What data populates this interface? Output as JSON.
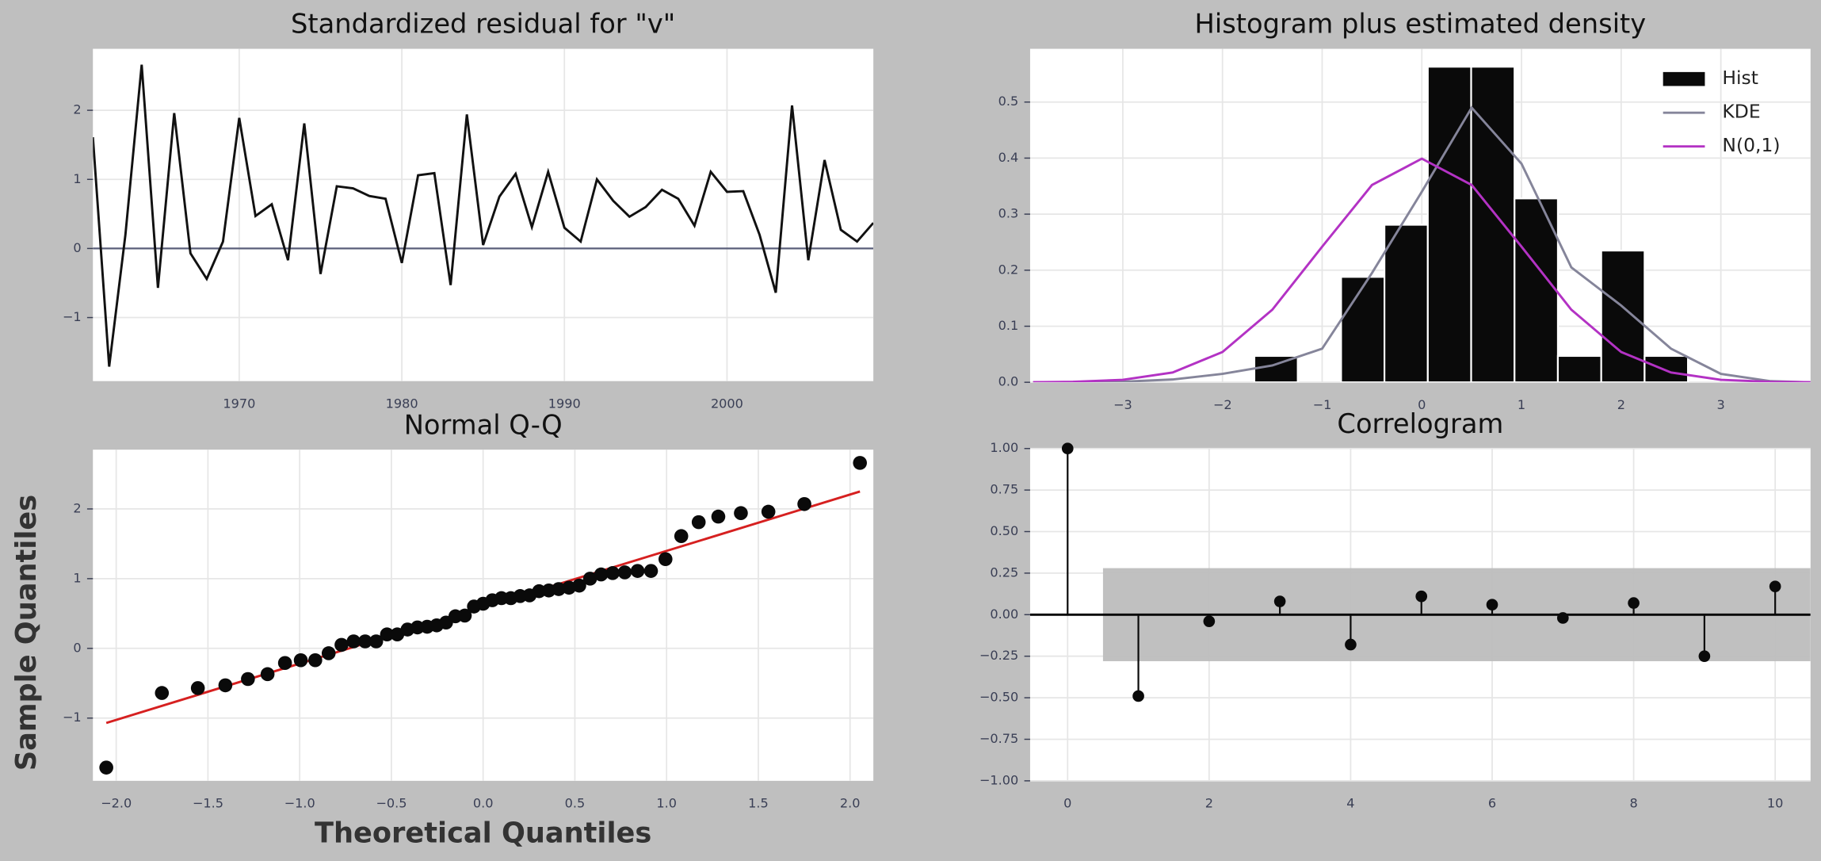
{
  "chart_data": [
    {
      "type": "line",
      "title": "Standardized residual for \"v\"",
      "x": [
        1961,
        1962,
        1963,
        1964,
        1965,
        1966,
        1967,
        1968,
        1969,
        1970,
        1971,
        1972,
        1973,
        1974,
        1975,
        1976,
        1977,
        1978,
        1979,
        1980,
        1981,
        1982,
        1983,
        1984,
        1985,
        1986,
        1987,
        1988,
        1989,
        1990,
        1991,
        1992,
        1993,
        1994,
        1995,
        1996,
        1997,
        1998,
        1999,
        2000,
        2001,
        2002,
        2003,
        2004,
        2005,
        2006,
        2007,
        2008,
        2009
      ],
      "series": [
        {
          "color": "#111111",
          "values": [
            1.61,
            -1.71,
            0.2,
            2.66,
            -0.57,
            1.96,
            -0.07,
            -0.44,
            0.1,
            1.89,
            0.47,
            0.64,
            -0.17,
            1.81,
            -0.37,
            0.9,
            0.87,
            0.76,
            0.72,
            -0.21,
            1.06,
            1.09,
            -0.53,
            1.94,
            0.05,
            0.75,
            1.08,
            0.31,
            1.11,
            0.3,
            0.1,
            1.0,
            0.69,
            0.46,
            0.6,
            0.85,
            0.72,
            0.33,
            1.11,
            0.82,
            0.83,
            0.2,
            -0.64,
            2.07,
            -0.17,
            1.28,
            0.27,
            0.1,
            0.37
          ]
        }
      ],
      "reference_line": 0,
      "reference_color": "#5a5f7a",
      "xlim": [
        1961,
        2009
      ],
      "xticks": [
        1970,
        1980,
        1990,
        2000
      ],
      "ylim": [
        -1.92,
        2.89
      ],
      "yticks": [
        {
          "value": -1,
          "label": "−1"
        },
        0,
        1,
        2
      ],
      "grid": true
    },
    {
      "type": "histogram",
      "title": "Histogram plus estimated density",
      "hist": {
        "name": "Hist",
        "color": "#0a0a0a",
        "bins": [
          -1.68,
          -1.245,
          -0.81,
          -0.375,
          0.06,
          0.495,
          0.93,
          1.365,
          1.8,
          2.235,
          2.67
        ],
        "values": [
          0.047,
          0,
          0.188,
          0.281,
          0.563,
          0.563,
          0.328,
          0.047,
          0.235,
          0.047
        ]
      },
      "curves": {
        "x": [
          -3.9,
          -3.5,
          -3,
          -2.5,
          -2,
          -1.5,
          -1,
          -0.5,
          0,
          0.5,
          1,
          1.5,
          2,
          2.5,
          3,
          3.5,
          3.9
        ],
        "series": [
          {
            "name": "KDE",
            "color": "#85859a",
            "values": [
              0,
              0.0005,
              0.001,
              0.005,
              0.015,
              0.03,
              0.06,
              0.195,
              0.34,
              0.49,
              0.39,
              0.205,
              0.137,
              0.06,
              0.015,
              0.002,
              0
            ]
          },
          {
            "name": "N(0,1)",
            "color": "#b332c4",
            "values": [
              0.0002,
              0.0009,
              0.0044,
              0.0175,
              0.054,
              0.1295,
              0.242,
              0.352,
              0.399,
              0.352,
              0.242,
              0.1295,
              0.054,
              0.0175,
              0.0044,
              0.0009,
              0.0002
            ]
          }
        ]
      },
      "legend": "upper right",
      "xlim": [
        -3.93,
        3.9
      ],
      "xticks": [
        {
          "value": -3,
          "label": "−3"
        },
        {
          "value": -2,
          "label": "−2"
        },
        {
          "value": -1,
          "label": "−1"
        },
        0,
        1,
        2,
        3
      ],
      "ylim": [
        0,
        0.595
      ],
      "yticks": [
        {
          "value": 0,
          "label": "0.0"
        },
        0.1,
        0.2,
        0.3,
        0.4,
        0.5
      ],
      "grid": true
    },
    {
      "type": "scatter",
      "title": "Normal Q-Q",
      "x_label": "Theoretical Quantiles",
      "y_label": "Sample Quantiles",
      "x": [
        -2.054,
        -1.751,
        -1.555,
        -1.405,
        -1.282,
        -1.175,
        -1.08,
        -0.994,
        -0.915,
        -0.842,
        -0.772,
        -0.706,
        -0.643,
        -0.583,
        -0.524,
        -0.468,
        -0.412,
        -0.358,
        -0.305,
        -0.253,
        -0.202,
        -0.151,
        -0.1,
        -0.05,
        0,
        0.05,
        0.1,
        0.151,
        0.202,
        0.253,
        0.305,
        0.358,
        0.412,
        0.468,
        0.524,
        0.583,
        0.643,
        0.706,
        0.772,
        0.842,
        0.915,
        0.994,
        1.08,
        1.175,
        1.282,
        1.405,
        1.555,
        1.751,
        2.054
      ],
      "values": [
        -1.71,
        -0.64,
        -0.57,
        -0.53,
        -0.44,
        -0.37,
        -0.21,
        -0.17,
        -0.17,
        -0.07,
        0.05,
        0.1,
        0.1,
        0.1,
        0.2,
        0.2,
        0.27,
        0.3,
        0.31,
        0.33,
        0.37,
        0.46,
        0.47,
        0.6,
        0.64,
        0.69,
        0.72,
        0.72,
        0.75,
        0.76,
        0.82,
        0.83,
        0.85,
        0.87,
        0.9,
        1.0,
        1.06,
        1.08,
        1.09,
        1.11,
        1.11,
        1.28,
        1.61,
        1.81,
        1.89,
        1.94,
        1.96,
        2.07,
        2.66
      ],
      "color": "#0a0a0a",
      "fit_line": {
        "x": [
          -2.054,
          2.054
        ],
        "values": [
          -1.07,
          2.25
        ],
        "color": "#d62020"
      },
      "xlim": [
        -2.127,
        2.127
      ],
      "xticks": [
        {
          "value": -2,
          "label": "−2.0"
        },
        {
          "value": -1.5,
          "label": "−1.5"
        },
        {
          "value": -1,
          "label": "−1.0"
        },
        {
          "value": -0.5,
          "label": "−0.5"
        },
        {
          "value": 0,
          "label": "0.0"
        },
        0.5,
        {
          "value": 1,
          "label": "1.0"
        },
        1.5,
        {
          "value": 2,
          "label": "2.0"
        }
      ],
      "ylim": [
        -1.9,
        2.85
      ],
      "yticks": [
        {
          "value": -1,
          "label": "−1"
        },
        0,
        1,
        2
      ],
      "grid": true
    },
    {
      "type": "stem",
      "title": "Correlogram",
      "x": [
        0,
        1,
        2,
        3,
        4,
        5,
        6,
        7,
        8,
        9,
        10
      ],
      "values": [
        1.0,
        -0.49,
        -0.04,
        0.08,
        -0.18,
        0.11,
        0.06,
        -0.02,
        0.07,
        -0.25,
        0.17
      ],
      "color": "#0a0a0a",
      "conf_int": 0.28,
      "conf_color": "#bdbdbd",
      "xlim": [
        -0.53,
        10.5
      ],
      "xticks": [
        0,
        2,
        4,
        6,
        8,
        10
      ],
      "ylim": [
        -1,
        1
      ],
      "yticks": [
        {
          "value": -1,
          "label": "−1.00"
        },
        {
          "value": -0.75,
          "label": "−0.75"
        },
        {
          "value": -0.5,
          "label": "−0.50"
        },
        {
          "value": -0.25,
          "label": "−0.25"
        },
        {
          "value": 0,
          "label": "0.00"
        },
        0.25,
        {
          "value": 0.5,
          "label": "0.50"
        },
        0.75,
        {
          "value": 1,
          "label": "1.00"
        }
      ],
      "grid": true
    }
  ]
}
